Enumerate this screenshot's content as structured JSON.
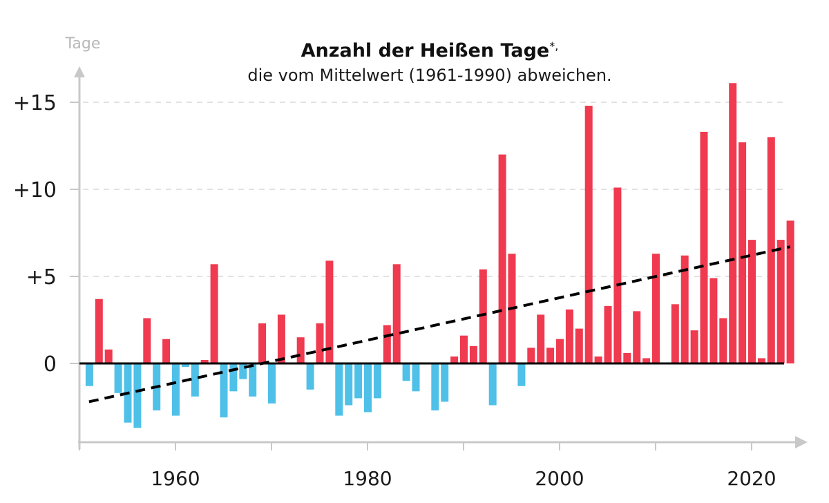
{
  "chart_data": {
    "type": "bar",
    "title": "Anzahl der Heißen Tage",
    "title_mark": "*,",
    "subtitle": "die vom Mittelwert (1961-1990) abweichen.",
    "ylabel": "Tage",
    "xlabel": "",
    "xlim": [
      1950,
      2026
    ],
    "ylim": [
      -4.5,
      17
    ],
    "yticks": [
      {
        "value": 0,
        "label": "0"
      },
      {
        "value": 5,
        "label": "+5"
      },
      {
        "value": 10,
        "label": "+10"
      },
      {
        "value": 15,
        "label": "+15"
      }
    ],
    "xticks_minor": [
      1950,
      1960,
      1970,
      1980,
      1990,
      2000,
      2010,
      2020
    ],
    "xtick_labels": [
      {
        "value": 1960,
        "label": "1960"
      },
      {
        "value": 1980,
        "label": "1980"
      },
      {
        "value": 2000,
        "label": "2000"
      },
      {
        "value": 2020,
        "label": "2020"
      }
    ],
    "grid": "horizontal-dashed",
    "colors": {
      "positive": "#ef3a4f",
      "negative": "#4fc0e8",
      "axis": "#c8c8c8",
      "trend": "#000000",
      "grid": "#d9d9d9"
    },
    "x": [
      1951,
      1952,
      1953,
      1954,
      1955,
      1956,
      1957,
      1958,
      1959,
      1960,
      1961,
      1962,
      1963,
      1964,
      1965,
      1966,
      1967,
      1968,
      1969,
      1970,
      1971,
      1972,
      1973,
      1974,
      1975,
      1976,
      1977,
      1978,
      1979,
      1980,
      1981,
      1982,
      1983,
      1984,
      1985,
      1986,
      1987,
      1988,
      1989,
      1990,
      1991,
      1992,
      1993,
      1994,
      1995,
      1996,
      1997,
      1998,
      1999,
      2000,
      2001,
      2002,
      2003,
      2004,
      2005,
      2006,
      2007,
      2008,
      2009,
      2010,
      2011,
      2012,
      2013,
      2014,
      2015,
      2016,
      2017,
      2018,
      2019,
      2020,
      2021,
      2022,
      2023,
      2024
    ],
    "values": [
      -1.3,
      3.7,
      0.8,
      -1.7,
      -3.4,
      -3.7,
      2.6,
      -2.7,
      1.4,
      -3.0,
      -0.2,
      -1.9,
      0.2,
      5.7,
      -3.1,
      -1.6,
      -0.9,
      -1.9,
      2.3,
      -2.3,
      2.8,
      0,
      1.5,
      -1.5,
      2.3,
      5.9,
      -3.0,
      -2.4,
      -2.0,
      -2.8,
      -2.0,
      2.2,
      5.7,
      -1.0,
      -1.6,
      0,
      -2.7,
      -2.2,
      0.4,
      1.6,
      1.0,
      5.4,
      -2.4,
      12.0,
      6.3,
      -1.3,
      0.9,
      2.8,
      0.9,
      1.4,
      3.1,
      2.0,
      14.8,
      0.4,
      3.3,
      10.1,
      0.6,
      3.0,
      0.3,
      6.3,
      0,
      3.4,
      6.2,
      1.9,
      13.3,
      4.9,
      2.6,
      16.1,
      12.7,
      7.1,
      0.3,
      13.0,
      7.1,
      8.2
    ],
    "trend": {
      "name": "Linearer Trend",
      "style": "dashed",
      "start": {
        "x": 1951,
        "y": -2.2
      },
      "end": {
        "x": 2024,
        "y": 6.7
      }
    }
  }
}
